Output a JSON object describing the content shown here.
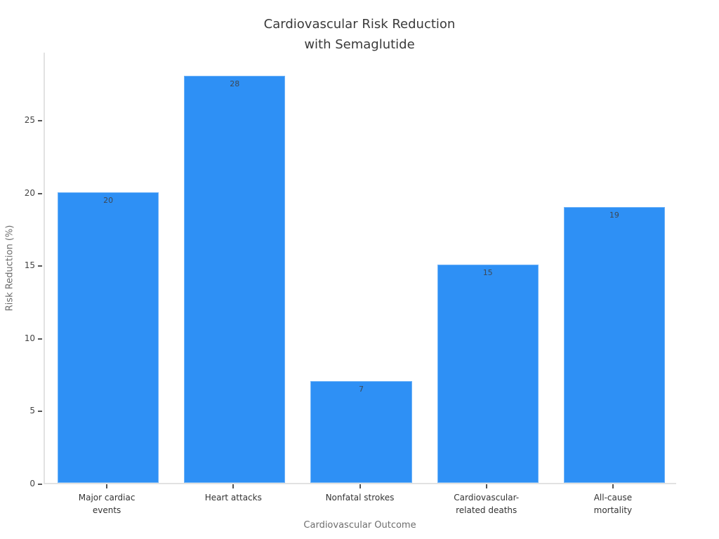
{
  "chart": {
    "title": "Cardiovascular Risk Reduction\nwith Semaglutide",
    "xlabel": "Cardiovascular Outcome",
    "ylabel": "Risk Reduction (%)"
  },
  "chart_data": {
    "type": "bar",
    "title": "Cardiovascular Risk Reduction with Semaglutide",
    "categories": [
      "Major cardiac\nevents",
      "Heart attacks",
      "Nonfatal strokes",
      "Cardiovascular-\nrelated deaths",
      "All-cause\nmortality"
    ],
    "values": [
      20,
      28,
      7,
      15,
      19
    ],
    "bar_value_labels": [
      "20",
      "28",
      "7",
      "15",
      "19"
    ],
    "xlabel": "Cardiovascular Outcome",
    "ylabel": "Risk Reduction (%)",
    "ylim": [
      0,
      29.7
    ],
    "yticks": [
      0,
      5,
      10,
      15,
      20,
      25
    ],
    "grid": false,
    "legend_position": "none",
    "bar_color": "#2e90f5",
    "bar_edge_color": "#6fb3f8",
    "value_label_color": "#3d4855",
    "spine_color": "#e2e2e2",
    "tick_color": "#555555"
  }
}
